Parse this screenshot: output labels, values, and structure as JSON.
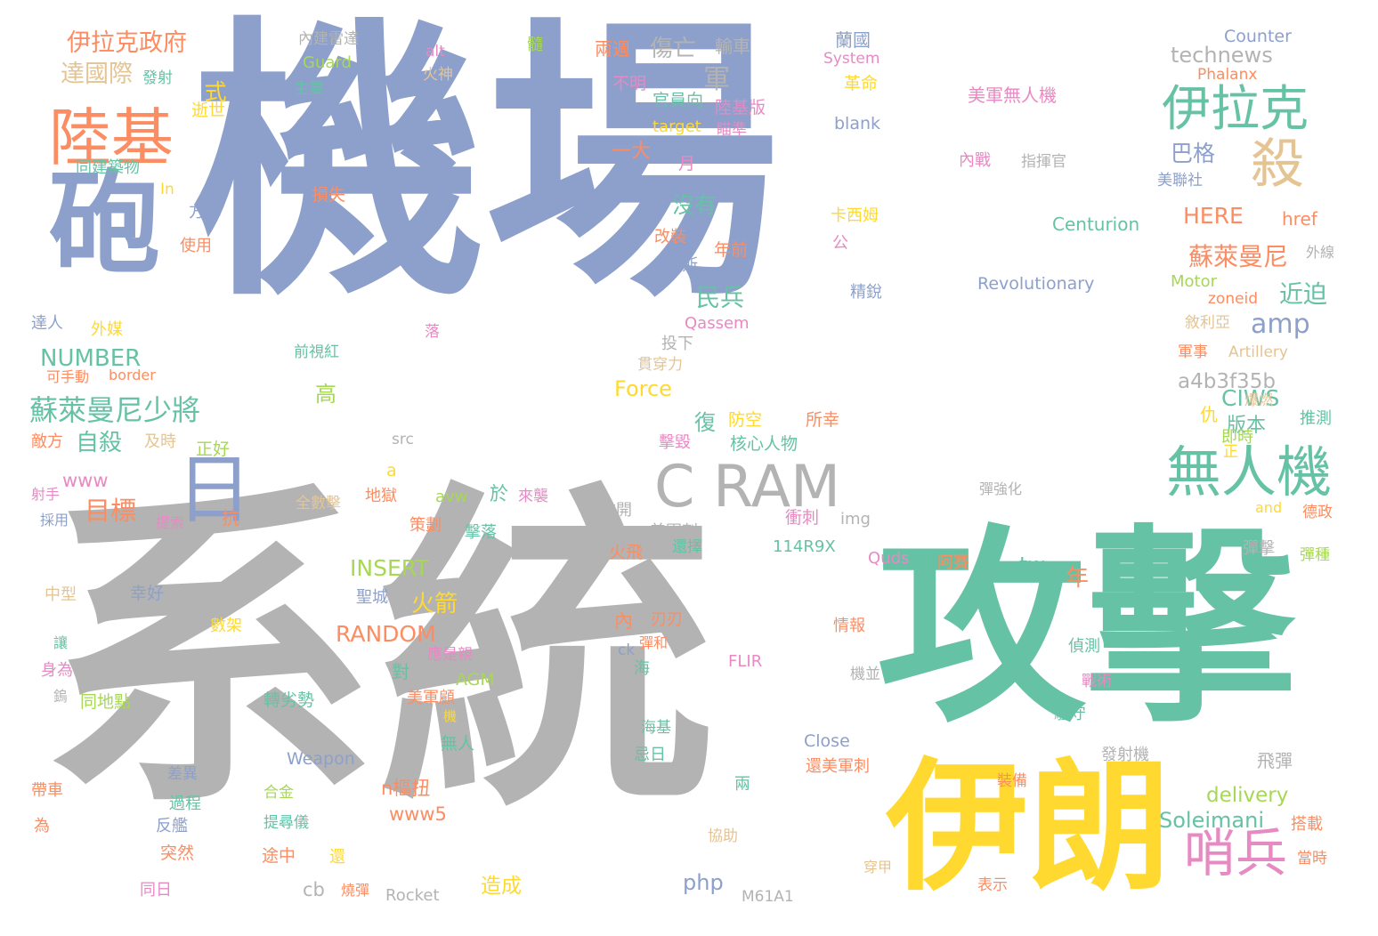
{
  "palette": {
    "blue": "#8da0cb",
    "gray": "#b3b3b3",
    "green": "#66c2a5",
    "yellow": "#ffd92f",
    "orange": "#fc8d62",
    "pink": "#e78ac3",
    "lime": "#a6d854",
    "tan": "#e5c494"
  },
  "words": [
    "機場",
    "系統",
    "攻擊",
    "伊朗",
    "砲",
    "陸基",
    "伊拉克",
    "殺",
    "無人機",
    "C RAM",
    "日",
    "哨兵",
    "伊拉克政府",
    "達國際",
    "蘇萊曼尼少將",
    "蘇萊曼尼",
    "美軍無人機",
    "technews",
    "Counter",
    "Phalanx",
    "System",
    "Guard",
    "內建雷達",
    "兩週",
    "傷亡",
    "輸車",
    "蘭國",
    "發射",
    "主要",
    "火神",
    "革命",
    "不明",
    "式",
    "逝世",
    "官員向",
    "陸基版",
    "blank",
    "target",
    "瞄準",
    "內戰",
    "指揮官",
    "軍",
    "巴格",
    "美聯社",
    "同建築物",
    "一大",
    "月",
    "In",
    "損失",
    "卡西姆",
    "方陣",
    "使用",
    "沒有",
    "HERE",
    "href",
    "Centurion",
    "改裝",
    "公",
    "外線",
    "年前",
    "伊斯",
    "精銳",
    "Revolutionary",
    "Motor",
    "民兵",
    "近迫",
    "zoneid",
    "達人",
    "外媒",
    "Qassem",
    "amp",
    "敘利亞",
    "投下",
    "前視紅",
    "NUMBER",
    "落",
    "貫穿力",
    "軍事",
    "Artillery",
    "可手動",
    "border",
    "Force",
    "a4b3f35b",
    "高",
    "CIWS",
    "爆燃",
    "敵方",
    "及時",
    "自殺",
    "src",
    "復",
    "防空",
    "所幸",
    "仇",
    "版本",
    "推測",
    "即時",
    "正好",
    "核心人物",
    "擊毀",
    "正",
    "www",
    "a",
    "目標",
    "射手",
    "採用",
    "提索",
    "抗",
    "地獄",
    "全數擊",
    "於",
    "來襲",
    "avw",
    "彈強化",
    "and",
    "德政",
    "衝刺",
    "img",
    "離開",
    "美軍刺",
    "還擇",
    "策劃",
    "擊落",
    "114R9X",
    "Quds",
    "阿賽",
    "彈擊",
    "彈種",
    "火飛",
    "衛隊",
    "INSERT",
    "tw",
    "中型",
    "幸好",
    "聖城",
    "年",
    "火箭",
    "數架",
    "內",
    "刃刃",
    "情報",
    "RANDOM",
    "彈和",
    "偵測",
    "ck",
    "讓",
    "身為",
    "應是親",
    "海",
    "對",
    "FLIR",
    "戰術",
    "機並",
    "鎢",
    "同地點",
    "AGM",
    "美軍顧",
    "駐守",
    "機",
    "轉劣勢",
    "海基",
    "無人",
    "忌日",
    "Close",
    "Weapon",
    "還美軍刺",
    "飛彈",
    "裝備",
    "發射機",
    "帶車",
    "差異",
    "合金",
    "n樞扭",
    "過程",
    "兩",
    "www5",
    "delivery",
    "Soleimani",
    "反艦",
    "搭載",
    "為",
    "提尋儀",
    "協助",
    "突然",
    "途中",
    "還",
    "當時",
    "穿甲",
    "php",
    "cb",
    "造成",
    "表示",
    "同日",
    "燒彈",
    "Rocket",
    "M61A1",
    "alt",
    "髓"
  ]
}
